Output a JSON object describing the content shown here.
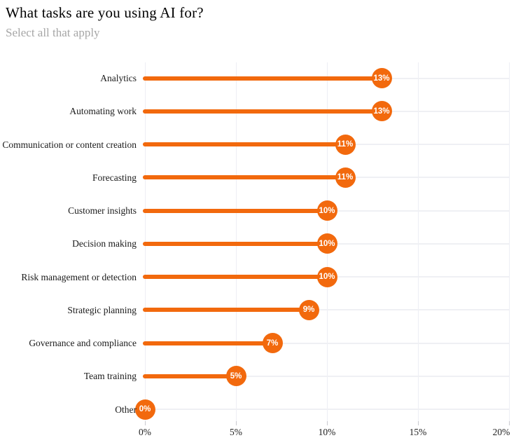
{
  "colors": {
    "accent": "#f2690d",
    "gridline": "#edeef4",
    "row_line": "#eff0f4",
    "title_text": "#000000",
    "subtitle_text": "#a6a6a6",
    "dot_label_text": "#ffffff"
  },
  "chart_data": {
    "type": "bar",
    "variant": "horizontal-lollipop",
    "title": "What tasks are you using AI for?",
    "subtitle": "Select all that apply",
    "categories": [
      "Analytics",
      "Automating work",
      "Communication or content creation",
      "Forecasting",
      "Customer insights",
      "Decision making",
      "Risk management or detection",
      "Strategic planning",
      "Governance and compliance",
      "Team training",
      "Other"
    ],
    "values": [
      13,
      13,
      11,
      11,
      10,
      10,
      10,
      9,
      7,
      5,
      0
    ],
    "value_labels": [
      "13%",
      "13%",
      "11%",
      "11%",
      "10%",
      "10%",
      "10%",
      "9%",
      "7%",
      "5%",
      "0%"
    ],
    "xlabel": "",
    "ylabel": "",
    "xlim": [
      0,
      20
    ],
    "x_tick_values": [
      0,
      5,
      10,
      15,
      20
    ],
    "x_tick_labels": [
      "0%",
      "5%",
      "10%",
      "15%",
      "20%"
    ],
    "grid": "vertical gridlines at ticks + light horizontal baseline per row",
    "legend": "none"
  }
}
